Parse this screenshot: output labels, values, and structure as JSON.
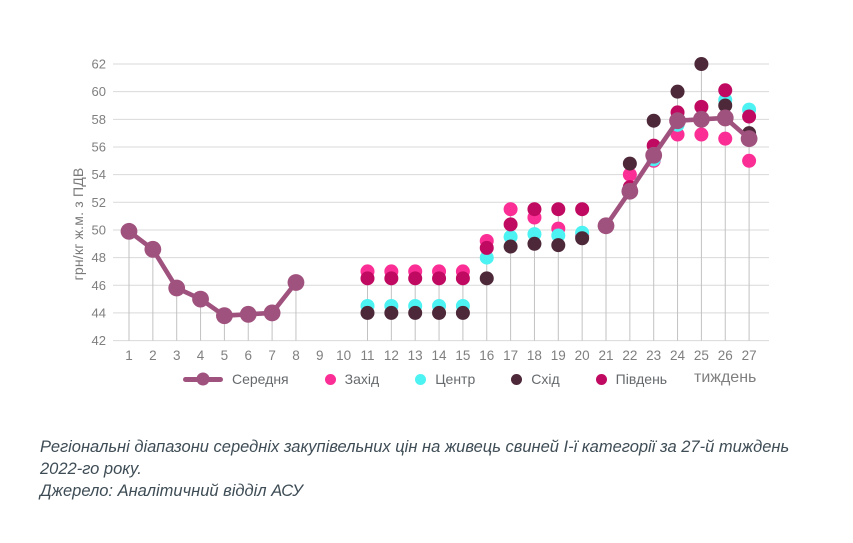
{
  "chart_data": {
    "type": "scatter",
    "title": "",
    "ylabel": "грн/кг ж.м. з ПДВ",
    "xlabel": "тиждень",
    "ylim": [
      42,
      62
    ],
    "ytick_step": 2,
    "grid": true,
    "legend_position": "bottom",
    "x": [
      1,
      2,
      3,
      4,
      5,
      6,
      7,
      8,
      9,
      10,
      11,
      12,
      13,
      14,
      15,
      16,
      17,
      18,
      19,
      20,
      21,
      22,
      23,
      24,
      25,
      26,
      27
    ],
    "series": [
      {
        "name": "Середня",
        "slug": "serednya",
        "type": "line",
        "color": "#A0527E",
        "values": [
          49.9,
          48.6,
          45.8,
          45,
          43.8,
          43.9,
          44,
          46.2,
          null,
          null,
          null,
          null,
          null,
          null,
          null,
          null,
          null,
          null,
          null,
          null,
          50.3,
          52.8,
          55.4,
          57.9,
          58,
          58.1,
          56.6
        ]
      },
      {
        "name": "Захід",
        "slug": "zakhid",
        "type": "scatter",
        "color": "#FB2E96",
        "values": [
          null,
          null,
          null,
          null,
          null,
          null,
          null,
          null,
          null,
          null,
          47,
          47,
          47,
          47,
          47,
          49.2,
          51.5,
          50.9,
          50.1,
          49.6,
          null,
          54,
          55,
          56.9,
          56.9,
          56.6,
          55
        ]
      },
      {
        "name": "Центр",
        "slug": "tsentr",
        "type": "scatter",
        "color": "#4DF2F2",
        "values": [
          null,
          null,
          null,
          null,
          null,
          null,
          null,
          null,
          null,
          null,
          44.5,
          44.5,
          44.5,
          44.5,
          44.5,
          48,
          49.5,
          49.7,
          49.6,
          49.8,
          null,
          52.9,
          55.1,
          57.6,
          58,
          59.4,
          58.7
        ]
      },
      {
        "name": "Схід",
        "slug": "skhid",
        "type": "scatter",
        "color": "#4D2839",
        "values": [
          null,
          null,
          null,
          null,
          null,
          null,
          null,
          null,
          null,
          null,
          44,
          44,
          44,
          44,
          44,
          46.5,
          48.8,
          49,
          48.9,
          49.4,
          null,
          54.8,
          57.9,
          60,
          62,
          59,
          57
        ]
      },
      {
        "name": "Південь",
        "slug": "pivden",
        "type": "scatter",
        "color": "#C00A61",
        "values": [
          null,
          null,
          null,
          null,
          null,
          null,
          null,
          null,
          null,
          null,
          46.5,
          46.5,
          46.5,
          46.5,
          46.5,
          48.7,
          50.4,
          51.5,
          51.5,
          51.5,
          null,
          53.1,
          56.1,
          58.5,
          58.9,
          60.1,
          58.2
        ]
      }
    ]
  },
  "caption": {
    "lines": [
      "Регіональні діапазони середніх закупівельних цін на живець свиней І-ї категорії за 27-й тиждень",
      "2022-го року.",
      "Джерело: Аналітичний відділ АСУ"
    ]
  },
  "colors": {
    "gridline": "#D9D9D9",
    "drop_line": "#C2C2C2",
    "tick_text": "#7F7F7F"
  }
}
